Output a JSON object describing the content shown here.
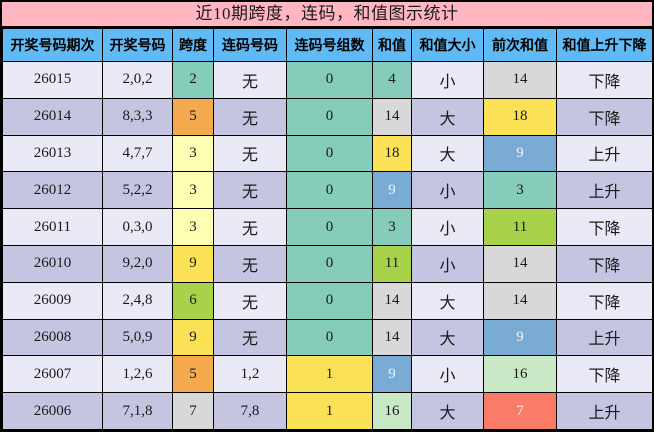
{
  "title": "近10期跨度，连码，和值图示统计",
  "table": {
    "headers": [
      "开奖号码期次",
      "开奖号码",
      "跨度",
      "连码号码",
      "连码号组数",
      "和值",
      "和值大小",
      "前次和值",
      "和值上升下降"
    ],
    "rows": [
      {
        "period": "26015",
        "numbers": "2,0,2",
        "span": {
          "v": "2",
          "c": "teal"
        },
        "consec": "无",
        "groups": {
          "v": "0",
          "c": "teal"
        },
        "sum": {
          "v": "4",
          "c": "teal"
        },
        "size": "小",
        "prev": {
          "v": "14",
          "c": "gray"
        },
        "trend": "下降"
      },
      {
        "period": "26014",
        "numbers": "8,3,3",
        "span": {
          "v": "5",
          "c": "orange"
        },
        "consec": "无",
        "groups": {
          "v": "0",
          "c": "teal"
        },
        "sum": {
          "v": "14",
          "c": "gray"
        },
        "size": "大",
        "prev": {
          "v": "18",
          "c": "yellow"
        },
        "trend": "下降"
      },
      {
        "period": "26013",
        "numbers": "4,7,7",
        "span": {
          "v": "3",
          "c": "pale_yellow"
        },
        "consec": "无",
        "groups": {
          "v": "0",
          "c": "teal"
        },
        "sum": {
          "v": "18",
          "c": "yellow"
        },
        "size": "大",
        "prev": {
          "v": "9",
          "c": "blue"
        },
        "trend": "上升"
      },
      {
        "period": "26012",
        "numbers": "5,2,2",
        "span": {
          "v": "3",
          "c": "pale_yellow"
        },
        "consec": "无",
        "groups": {
          "v": "0",
          "c": "teal"
        },
        "sum": {
          "v": "9",
          "c": "blue"
        },
        "size": "小",
        "prev": {
          "v": "3",
          "c": "teal"
        },
        "trend": "上升"
      },
      {
        "period": "26011",
        "numbers": "0,3,0",
        "span": {
          "v": "3",
          "c": "pale_yellow"
        },
        "consec": "无",
        "groups": {
          "v": "0",
          "c": "teal"
        },
        "sum": {
          "v": "3",
          "c": "teal"
        },
        "size": "小",
        "prev": {
          "v": "11",
          "c": "lime"
        },
        "trend": "下降"
      },
      {
        "period": "26010",
        "numbers": "9,2,0",
        "span": {
          "v": "9",
          "c": "yellow"
        },
        "consec": "无",
        "groups": {
          "v": "0",
          "c": "teal"
        },
        "sum": {
          "v": "11",
          "c": "lime"
        },
        "size": "小",
        "prev": {
          "v": "14",
          "c": "gray"
        },
        "trend": "下降"
      },
      {
        "period": "26009",
        "numbers": "2,4,8",
        "span": {
          "v": "6",
          "c": "lime"
        },
        "consec": "无",
        "groups": {
          "v": "0",
          "c": "teal"
        },
        "sum": {
          "v": "14",
          "c": "gray"
        },
        "size": "大",
        "prev": {
          "v": "14",
          "c": "gray"
        },
        "trend": "下降"
      },
      {
        "period": "26008",
        "numbers": "5,0,9",
        "span": {
          "v": "9",
          "c": "yellow"
        },
        "consec": "无",
        "groups": {
          "v": "0",
          "c": "teal"
        },
        "sum": {
          "v": "14",
          "c": "gray"
        },
        "size": "大",
        "prev": {
          "v": "9",
          "c": "blue"
        },
        "trend": "上升"
      },
      {
        "period": "26007",
        "numbers": "1,2,6",
        "span": {
          "v": "5",
          "c": "orange"
        },
        "consec": "1,2",
        "groups": {
          "v": "1",
          "c": "yellow"
        },
        "sum": {
          "v": "9",
          "c": "blue"
        },
        "size": "小",
        "prev": {
          "v": "16",
          "c": "light_green"
        },
        "trend": "下降"
      },
      {
        "period": "26006",
        "numbers": "7,1,8",
        "span": {
          "v": "7",
          "c": "gray"
        },
        "consec": "7,8",
        "groups": {
          "v": "1",
          "c": "yellow"
        },
        "sum": {
          "v": "16",
          "c": "light_green"
        },
        "size": "大",
        "prev": {
          "v": "7",
          "c": "salmon"
        },
        "trend": "上升"
      }
    ]
  },
  "colors": {
    "title_bg": "#FFB6C1",
    "header_bg": "#60BAF5",
    "row_odd": "#EAEAF6",
    "row_even": "#C5C5E1",
    "cell": {
      "teal": {
        "bg": "#86CCBB",
        "fg": "#1a1a1a"
      },
      "orange": {
        "bg": "#F5A94E",
        "fg": "#1a1a1a"
      },
      "pale_yellow": {
        "bg": "#FFFFB3",
        "fg": "#1a1a1a"
      },
      "yellow": {
        "bg": "#FBE155",
        "fg": "#1a1a1a"
      },
      "lime": {
        "bg": "#A7D24A",
        "fg": "#1a1a1a"
      },
      "gray": {
        "bg": "#D8D8D8",
        "fg": "#1a1a1a"
      },
      "blue": {
        "bg": "#7AABD5",
        "fg": "#F2F2F7"
      },
      "light_green": {
        "bg": "#C9E8C6",
        "fg": "#1a1a1a"
      },
      "salmon": {
        "bg": "#FA7C66",
        "fg": "#F2F2F7"
      }
    }
  },
  "chart_data": {
    "type": "table",
    "title": "近10期跨度，连码，和值图示统计",
    "columns": [
      "开奖号码期次",
      "开奖号码",
      "跨度",
      "连码号码",
      "连码号组数",
      "和值",
      "和值大小",
      "前次和值",
      "和值上升下降"
    ],
    "rows": [
      [
        "26015",
        "2,0,2",
        2,
        "无",
        0,
        4,
        "小",
        14,
        "下降"
      ],
      [
        "26014",
        "8,3,3",
        5,
        "无",
        0,
        14,
        "大",
        18,
        "下降"
      ],
      [
        "26013",
        "4,7,7",
        3,
        "无",
        0,
        18,
        "大",
        9,
        "上升"
      ],
      [
        "26012",
        "5,2,2",
        3,
        "无",
        0,
        9,
        "小",
        3,
        "上升"
      ],
      [
        "26011",
        "0,3,0",
        3,
        "无",
        0,
        3,
        "小",
        11,
        "下降"
      ],
      [
        "26010",
        "9,2,0",
        9,
        "无",
        0,
        11,
        "小",
        14,
        "下降"
      ],
      [
        "26009",
        "2,4,8",
        6,
        "无",
        0,
        14,
        "大",
        14,
        "下降"
      ],
      [
        "26008",
        "5,0,9",
        9,
        "无",
        0,
        14,
        "大",
        9,
        "上升"
      ],
      [
        "26007",
        "1,2,6",
        5,
        "1,2",
        1,
        9,
        "小",
        16,
        "下降"
      ],
      [
        "26006",
        "7,1,8",
        7,
        "7,8",
        1,
        16,
        "大",
        7,
        "上升"
      ]
    ]
  }
}
